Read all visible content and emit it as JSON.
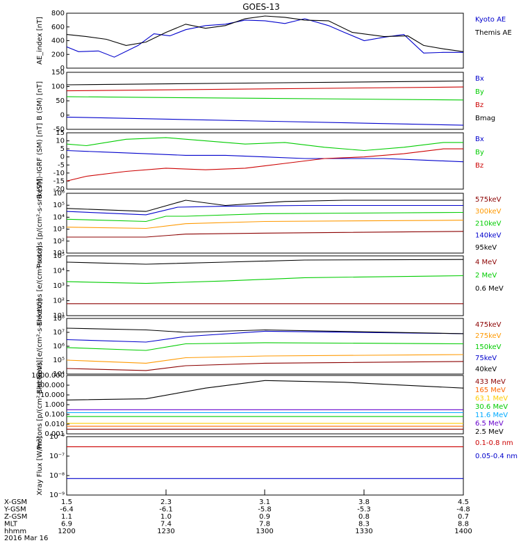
{
  "title": "GOES-13",
  "chart_data": [
    {
      "type": "line",
      "ylabel": "AE_index [nT]",
      "ylim": [
        0,
        800
      ],
      "yticks": [
        "0",
        "200",
        "400",
        "600",
        "800"
      ],
      "series": [
        {
          "name": "Kyoto AE",
          "color": "#0000cc",
          "x": [
            0,
            0.03,
            0.08,
            0.12,
            0.18,
            0.22,
            0.26,
            0.3,
            0.35,
            0.4,
            0.45,
            0.5,
            0.55,
            0.6,
            0.66,
            0.7,
            0.75,
            0.8,
            0.85,
            0.9,
            0.95,
            1.0
          ],
          "y": [
            310,
            240,
            250,
            160,
            330,
            500,
            470,
            560,
            620,
            640,
            700,
            690,
            650,
            720,
            620,
            520,
            400,
            450,
            490,
            220,
            230,
            230
          ]
        },
        {
          "name": "Themis AE",
          "color": "#000000",
          "x": [
            0,
            0.05,
            0.1,
            0.15,
            0.2,
            0.25,
            0.3,
            0.35,
            0.4,
            0.45,
            0.5,
            0.55,
            0.6,
            0.66,
            0.72,
            0.8,
            0.86,
            0.9,
            0.95,
            1.0
          ],
          "y": [
            490,
            460,
            420,
            330,
            380,
            520,
            640,
            580,
            620,
            720,
            760,
            740,
            700,
            690,
            520,
            460,
            470,
            330,
            280,
            240
          ]
        }
      ]
    },
    {
      "type": "line",
      "ylabel": "B (SM) [nT]",
      "ylim": [
        -60,
        150
      ],
      "yticks": [
        "-50",
        "0",
        "50",
        "100",
        "150"
      ],
      "series": [
        {
          "name": "Bx",
          "color": "#0000cc",
          "x": [
            0,
            1
          ],
          "y": [
            -15,
            -45
          ]
        },
        {
          "name": "By",
          "color": "#00cc00",
          "x": [
            0,
            1
          ],
          "y": [
            60,
            48
          ]
        },
        {
          "name": "Bz",
          "color": "#cc0000",
          "x": [
            0,
            1
          ],
          "y": [
            82,
            96
          ]
        },
        {
          "name": "Bmag",
          "color": "#000000",
          "x": [
            0,
            1
          ],
          "y": [
            104,
            118
          ]
        }
      ]
    },
    {
      "type": "line",
      "ylabel": "B (SM)-IGRF (SM) [nT]",
      "ylim": [
        -20,
        15
      ],
      "yticks": [
        "-20",
        "-15",
        "-10",
        "-5",
        "0",
        "5",
        "10",
        "15"
      ],
      "series": [
        {
          "name": "Bx",
          "color": "#0000cc",
          "x": [
            0,
            0.1,
            0.2,
            0.3,
            0.4,
            0.5,
            0.6,
            0.7,
            0.8,
            0.9,
            1.0
          ],
          "y": [
            4,
            3,
            2,
            1,
            1,
            0,
            -1,
            -1,
            -1,
            -2,
            -3
          ]
        },
        {
          "name": "By",
          "color": "#00cc00",
          "x": [
            0,
            0.05,
            0.15,
            0.25,
            0.35,
            0.45,
            0.55,
            0.65,
            0.75,
            0.85,
            0.95,
            1.0
          ],
          "y": [
            8,
            7,
            11,
            12,
            10,
            8,
            9,
            6,
            4,
            6,
            9,
            9
          ]
        },
        {
          "name": "Bz",
          "color": "#cc0000",
          "x": [
            0,
            0.05,
            0.15,
            0.25,
            0.35,
            0.45,
            0.55,
            0.65,
            0.75,
            0.85,
            0.95,
            1.0
          ],
          "y": [
            -15,
            -12,
            -9,
            -7,
            -8,
            -7,
            -4,
            -1,
            0,
            2,
            5,
            5
          ]
        }
      ]
    },
    {
      "type": "line",
      "ylabel": "Protons [p/(cm²-s-sr-keV)]",
      "log": true,
      "ylim": [
        1,
        1000000
      ],
      "yticks": [
        "10¹",
        "10²",
        "10³",
        "10⁴",
        "10⁵",
        "10⁶"
      ],
      "series": [
        {
          "name": "575keV",
          "color": "#8b0000",
          "x": [
            0,
            0.2,
            0.3,
            0.5,
            1.0
          ],
          "y": [
            40,
            40,
            80,
            100,
            150
          ]
        },
        {
          "name": "300keV",
          "color": "#ff9900",
          "x": [
            0,
            0.2,
            0.3,
            0.5,
            1.0
          ],
          "y": [
            400,
            300,
            900,
            1500,
            2000
          ]
        },
        {
          "name": "210keV",
          "color": "#00cc00",
          "x": [
            0,
            0.2,
            0.25,
            0.3,
            0.5,
            1.0
          ],
          "y": [
            2500,
            1500,
            5000,
            5000,
            9000,
            12000
          ]
        },
        {
          "name": "140keV",
          "color": "#0000cc",
          "x": [
            0,
            0.2,
            0.28,
            0.4,
            0.6,
            1.0
          ],
          "y": [
            15000,
            7000,
            40000,
            50000,
            60000,
            60000
          ]
        },
        {
          "name": "95keV",
          "color": "#000000",
          "x": [
            0,
            0.2,
            0.3,
            0.4,
            0.55,
            0.7,
            1.0
          ],
          "y": [
            30000,
            15000,
            200000,
            60000,
            150000,
            200000,
            200000
          ]
        }
      ]
    },
    {
      "type": "line",
      "ylabel": "Electrons [e/(cm²-s-sr)]",
      "log": true,
      "ylim": [
        1,
        100000
      ],
      "yticks": [
        "10¹",
        "10²",
        "10³",
        "10⁴",
        "10⁵"
      ],
      "series": [
        {
          "name": "4 MeV",
          "color": "#8b0000",
          "x": [
            0,
            1
          ],
          "y": [
            10,
            10
          ]
        },
        {
          "name": "2 MeV",
          "color": "#00cc00",
          "x": [
            0,
            0.2,
            0.4,
            0.6,
            1.0
          ],
          "y": [
            700,
            500,
            800,
            1500,
            2200
          ]
        },
        {
          "name": "0.6 MeV",
          "color": "#000000",
          "x": [
            0,
            0.2,
            0.4,
            0.6,
            1.0
          ],
          "y": [
            30000,
            20000,
            30000,
            45000,
            50000
          ]
        }
      ]
    },
    {
      "type": "line",
      "ylabel": "Electrons [e/(cm²-s-sr-keV)]",
      "log": true,
      "ylim": [
        10000,
        100000000
      ],
      "yticks": [
        "10⁴",
        "10⁵",
        "10⁶",
        "10⁷",
        "10⁸"
      ],
      "series": [
        {
          "name": "475keV",
          "color": "#8b0000",
          "x": [
            0,
            0.2,
            0.3,
            0.5,
            1.0
          ],
          "y": [
            25000,
            18000,
            40000,
            60000,
            80000
          ]
        },
        {
          "name": "275keV",
          "color": "#ff9900",
          "x": [
            0,
            0.2,
            0.3,
            0.5,
            1.0
          ],
          "y": [
            100000,
            60000,
            150000,
            200000,
            250000
          ]
        },
        {
          "name": "150keV",
          "color": "#00cc00",
          "x": [
            0,
            0.2,
            0.3,
            0.5,
            1.0
          ],
          "y": [
            800000,
            500000,
            1500000,
            1800000,
            1500000
          ]
        },
        {
          "name": "75keV",
          "color": "#0000cc",
          "x": [
            0,
            0.2,
            0.3,
            0.5,
            1.0
          ],
          "y": [
            3000000,
            2000000,
            5000000,
            12000000,
            8000000
          ]
        },
        {
          "name": "40keV",
          "color": "#000000",
          "x": [
            0,
            0.2,
            0.3,
            0.5,
            1.0
          ],
          "y": [
            20000000,
            15000000,
            10000000,
            15000000,
            8000000
          ]
        }
      ]
    },
    {
      "type": "line",
      "ylabel": "Protons [p/(cm²-s-sr-keV)]",
      "log": true,
      "ylim": [
        0.001,
        1000
      ],
      "yticks": [
        "0.001",
        "0.010",
        "0.100",
        "1.000",
        "10.000",
        "100.000",
        "1000.000"
      ],
      "series": [
        {
          "name": "433 MeV",
          "color": "#8b0000",
          "x": [
            0,
            1
          ],
          "y": [
            0.003,
            0.003
          ]
        },
        {
          "name": "165 MeV",
          "color": "#ff6600",
          "x": [
            0,
            1
          ],
          "y": [
            0.006,
            0.006
          ]
        },
        {
          "name": "63.1 MeV",
          "color": "#ffcc00",
          "x": [
            0,
            1
          ],
          "y": [
            0.012,
            0.012
          ]
        },
        {
          "name": "30.6 MeV",
          "color": "#00cc00",
          "x": [
            0,
            1
          ],
          "y": [
            0.06,
            0.06
          ]
        },
        {
          "name": "11.6 MeV",
          "color": "#00aaff",
          "x": [
            0,
            1
          ],
          "y": [
            0.15,
            0.15
          ]
        },
        {
          "name": "6.5 MeV",
          "color": "#6600cc",
          "x": [
            0,
            1
          ],
          "y": [
            0.3,
            0.3
          ]
        },
        {
          "name": "2.5 MeV",
          "color": "#000000",
          "x": [
            0,
            0.2,
            0.35,
            0.5,
            0.7,
            1.0
          ],
          "y": [
            3,
            4,
            50,
            300,
            200,
            50
          ]
        }
      ]
    },
    {
      "type": "line",
      "ylabel": "Xray Flux [W/m²]",
      "log": true,
      "ylim": [
        1e-09,
        1e-06
      ],
      "yticks": [
        "10⁻⁹",
        "10⁻⁸",
        "10⁻⁷",
        "10⁻⁶"
      ],
      "series": [
        {
          "name": "0.1-0.8 nm",
          "color": "#cc0000",
          "x": [
            0,
            1
          ],
          "y": [
            3e-07,
            3e-07
          ]
        },
        {
          "name": "0.05-0.4 nm",
          "color": "#0000cc",
          "x": [
            0,
            1
          ],
          "y": [
            7e-09,
            7e-09
          ]
        }
      ]
    }
  ],
  "bottom_axis": {
    "row_labels": [
      "X-GSM",
      "Y-GSM",
      "Z-GSM",
      "MLT",
      "hhmm"
    ],
    "date": "2016 Mar 16",
    "columns": [
      {
        "x-gsm": "1.5",
        "y-gsm": "-6.4",
        "z-gsm": "1.1",
        "mlt": "6.9",
        "hhmm": "1200"
      },
      {
        "x-gsm": "2.3",
        "y-gsm": "-6.1",
        "z-gsm": "1.0",
        "mlt": "7.4",
        "hhmm": "1230"
      },
      {
        "x-gsm": "3.1",
        "y-gsm": "-5.8",
        "z-gsm": "0.9",
        "mlt": "7.8",
        "hhmm": "1300"
      },
      {
        "x-gsm": "3.8",
        "y-gsm": "-5.3",
        "z-gsm": "0.8",
        "mlt": "8.3",
        "hhmm": "1330"
      },
      {
        "x-gsm": "4.5",
        "y-gsm": "-4.8",
        "z-gsm": "0.7",
        "mlt": "8.8",
        "hhmm": "1400"
      }
    ]
  }
}
